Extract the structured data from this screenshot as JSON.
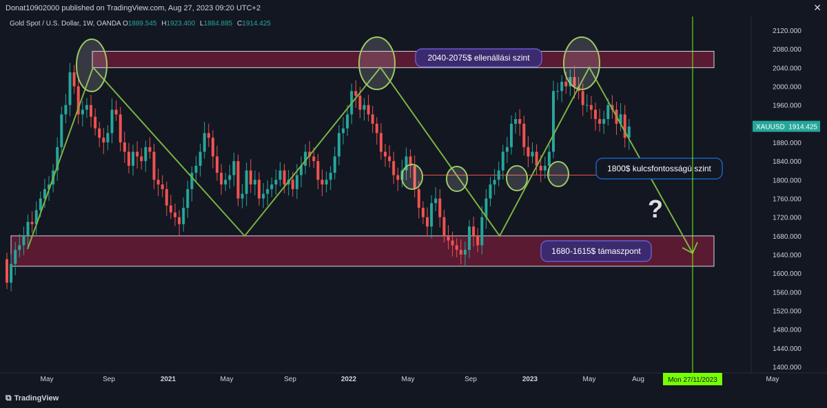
{
  "header": {
    "published": "Donat10902000 published on TradingView.com, Aug 27, 2023 09:20 UTC+2",
    "close_icon": "close-icon"
  },
  "legend": {
    "title": "Gold Spot / U.S. Dollar, 1W, OANDA",
    "o_key": "O",
    "o_val": "1889.545",
    "h_key": "H",
    "h_val": "1923.400",
    "l_key": "L",
    "l_val": "1884.885",
    "c_key": "C",
    "c_val": "1914.425"
  },
  "footer": {
    "brand": "TradingView",
    "brand_icon": "tradingview-logo-icon"
  },
  "colors": {
    "background": "#131722",
    "up": "#26a69a",
    "down": "#ef5350",
    "zone_fill": "#5a1a32",
    "trend_line": "#7cb342",
    "ellipse": "#9ccc65",
    "label_purple": "#3b2a6e",
    "label_blue": "#1565c0",
    "support_line": "#ef5350",
    "date_marker": "#76ff03"
  },
  "chart_data": {
    "type": "candlestick",
    "symbol": "XAUUSD",
    "timeframe": "1W",
    "ylim": [
      1400,
      2120
    ],
    "y_ticks": [
      "1400.000",
      "1440.000",
      "1480.000",
      "1520.000",
      "1560.000",
      "1600.000",
      "1640.000",
      "1680.000",
      "1720.000",
      "1760.000",
      "1800.000",
      "1840.000",
      "1880.000",
      "1920.000",
      "1960.000",
      "2000.000",
      "2040.000",
      "2080.000",
      "2120.000"
    ],
    "x_tick_labels": [
      "May",
      "Sep",
      "2021",
      "May",
      "Sep",
      "2022",
      "May",
      "Sep",
      "2023",
      "May",
      "Aug",
      "May"
    ],
    "bold_x_ticks": [
      "2021",
      "2022",
      "2023"
    ],
    "price_label": {
      "symbol": "XAUUSD",
      "value": "1914.425"
    },
    "date_label": "Mon 27/11/2023",
    "resistance_zone": {
      "low": 2040,
      "high": 2075,
      "label": "2040-2075$ ellenállási szint"
    },
    "support_zone": {
      "low": 1615,
      "high": 1680,
      "label": "1680-1615$ támaszpont"
    },
    "key_level": {
      "value": 1810,
      "label": "1800$ kulcsfontosságú szint"
    },
    "question_mark": "?",
    "closes": [
      1580,
      1620,
      1650,
      1660,
      1680,
      1710,
      1705,
      1735,
      1760,
      1780,
      1790,
      1820,
      1870,
      1940,
      1960,
      2030,
      2000,
      1940,
      1950,
      1960,
      1935,
      1910,
      1890,
      1880,
      1900,
      1950,
      1940,
      1880,
      1860,
      1830,
      1860,
      1850,
      1840,
      1870,
      1860,
      1800,
      1790,
      1780,
      1745,
      1730,
      1720,
      1705,
      1740,
      1780,
      1815,
      1830,
      1860,
      1900,
      1890,
      1850,
      1815,
      1790,
      1800,
      1810,
      1840,
      1760,
      1770,
      1820,
      1790,
      1800,
      1760,
      1770,
      1780,
      1790,
      1800,
      1820,
      1790,
      1800,
      1780,
      1810,
      1830,
      1860,
      1850,
      1840,
      1800,
      1790,
      1800,
      1815,
      1850,
      1900,
      1910,
      1940,
      1990,
      1980,
      1950,
      1960,
      1940,
      1920,
      1900,
      1860,
      1850,
      1840,
      1810,
      1800,
      1820,
      1850,
      1830,
      1780,
      1740,
      1720,
      1700,
      1750,
      1760,
      1720,
      1680,
      1670,
      1660,
      1650,
      1640,
      1650,
      1700,
      1680,
      1660,
      1720,
      1760,
      1790,
      1800,
      1820,
      1860,
      1870,
      1920,
      1930,
      1920,
      1870,
      1850,
      1860,
      1830,
      1820,
      1830,
      1860,
      1990,
      1990,
      2010,
      2000,
      2020,
      2000,
      1990,
      1960,
      1960,
      1950,
      1930,
      1920,
      1930,
      1960,
      1950,
      1920,
      1940,
      1890,
      1914
    ]
  }
}
